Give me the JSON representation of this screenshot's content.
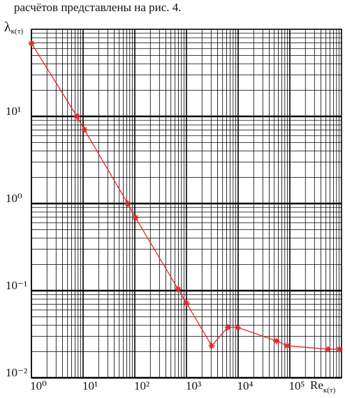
{
  "caption": "расчётов представлены на рис. 4.",
  "chart_data": {
    "type": "line",
    "xlog": true,
    "ylog": true,
    "grid": true,
    "minor_grid": true,
    "ylabel": "λ",
    "ylabel_sub": "к(т)",
    "xlabel": "Re",
    "xlabel_sub": "к(т)",
    "xlim": [
      1,
      1000000
    ],
    "ylim": [
      0.01,
      100
    ],
    "xticks": [
      {
        "value": 1,
        "label": "10⁰"
      },
      {
        "value": 10,
        "label": "10¹"
      },
      {
        "value": 100,
        "label": "10²"
      },
      {
        "value": 1000,
        "label": "10³"
      },
      {
        "value": 10000,
        "label": "10⁴"
      },
      {
        "value": 100000,
        "label": "10⁵"
      }
    ],
    "yticks": [
      {
        "value": 0.01,
        "label": "10⁻²"
      },
      {
        "value": 0.1,
        "label": "10⁻¹"
      },
      {
        "value": 1,
        "label": "10⁰"
      },
      {
        "value": 10,
        "label": "10¹"
      }
    ],
    "x": [
      1,
      7.6,
      10.6,
      73,
      103,
      690,
      1000,
      3080,
      6300,
      9700,
      55000,
      89000,
      550000,
      910000
    ],
    "series": [
      {
        "color": "#e8262a",
        "values": [
          69,
          10,
          7.05,
          1,
          0.69,
          0.104,
          0.072,
          0.0233,
          0.038,
          0.038,
          0.0265,
          0.0233,
          0.0213,
          0.0213
        ]
      }
    ]
  }
}
